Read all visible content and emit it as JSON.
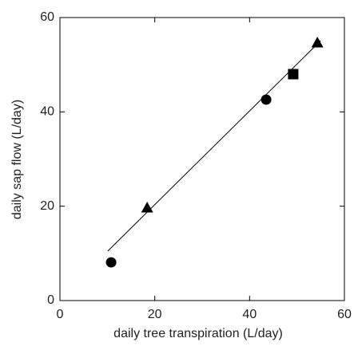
{
  "chart_data": {
    "type": "scatter",
    "xlabel": "daily tree transpiration (L/day)",
    "ylabel": "daily sap flow (L/day)",
    "xlim": [
      0,
      60
    ],
    "ylim": [
      0,
      60
    ],
    "xticks": [
      0,
      20,
      40,
      60
    ],
    "yticks": [
      0,
      20,
      40,
      60
    ],
    "grid": false,
    "series": [
      {
        "marker": "circle",
        "color": "#000000",
        "x": [
          10.8,
          43.5
        ],
        "values": [
          8.1,
          42.6
        ]
      },
      {
        "marker": "triangle",
        "color": "#000000",
        "x": [
          18.4,
          54.3
        ],
        "values": [
          19.6,
          54.6
        ]
      },
      {
        "marker": "square",
        "color": "#000000",
        "x": [
          49.2
        ],
        "values": [
          48.0
        ]
      }
    ],
    "fit_line": {
      "color": "#000000",
      "x": [
        10.1,
        55.0
      ],
      "values": [
        10.5,
        55.1
      ]
    }
  }
}
